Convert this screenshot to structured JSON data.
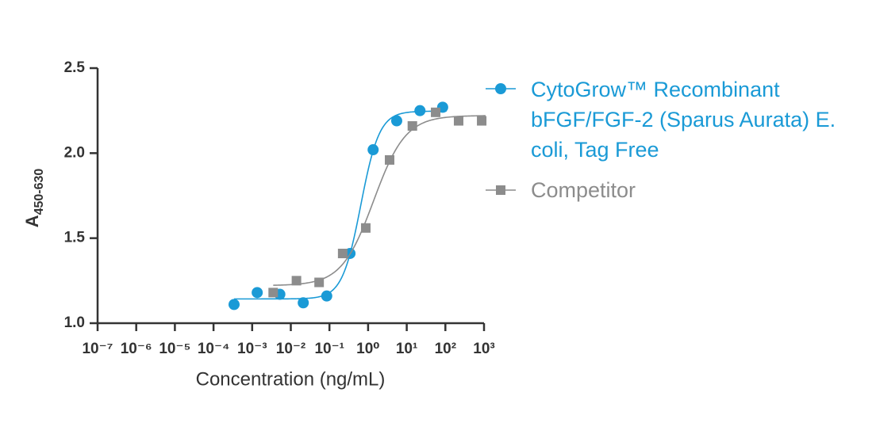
{
  "chart_data": {
    "type": "scatter",
    "x_label": "Concentration (ng/mL)",
    "y_label": "A",
    "y_label_subscript": "450-630",
    "xscale": "log",
    "xlim": [
      1e-07,
      1000
    ],
    "xticks": [
      {
        "value": 1e-07,
        "label": "10⁻⁷"
      },
      {
        "value": 1e-06,
        "label": "10⁻⁶"
      },
      {
        "value": 1e-05,
        "label": "10⁻⁵"
      },
      {
        "value": 0.0001,
        "label": "10⁻⁴"
      },
      {
        "value": 0.001,
        "label": "10⁻³"
      },
      {
        "value": 0.01,
        "label": "10⁻²"
      },
      {
        "value": 0.1,
        "label": "10⁻¹"
      },
      {
        "value": 1,
        "label": "10⁰"
      },
      {
        "value": 10,
        "label": "10¹"
      },
      {
        "value": 100,
        "label": "10²"
      },
      {
        "value": 1000,
        "label": "10³"
      }
    ],
    "ylim": [
      1,
      2.5
    ],
    "yticks": [
      {
        "value": 1,
        "label": "1.0"
      },
      1.5,
      {
        "value": 2,
        "label": "2.0"
      },
      2.5
    ],
    "fit_curve": true,
    "series": [
      {
        "name": "CytoGrow™ Recombinant bFGF/FGF-2 (Sparus Aurata) E. coli, Tag Free",
        "color": "#1a9ad6",
        "marker": "circle",
        "x": [
          0.00034,
          0.00135,
          0.0052,
          0.021,
          0.085,
          0.34,
          1.35,
          5.5,
          22,
          85
        ],
        "values": [
          1.11,
          1.18,
          1.17,
          1.12,
          1.16,
          1.41,
          2.02,
          2.19,
          2.25,
          2.27
        ]
      },
      {
        "name": "Competitor",
        "color": "#8c8c8c",
        "marker": "square",
        "x": [
          0.0035,
          0.014,
          0.054,
          0.22,
          0.87,
          3.6,
          14,
          56,
          220,
          870
        ],
        "values": [
          1.18,
          1.25,
          1.24,
          1.41,
          1.56,
          1.96,
          2.16,
          2.24,
          2.19,
          2.19
        ]
      }
    ]
  }
}
